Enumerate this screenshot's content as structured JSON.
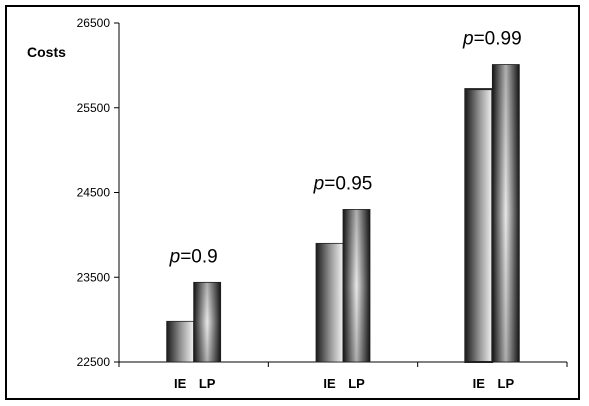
{
  "chart_data": {
    "type": "bar",
    "ylabel": "Costs",
    "ylim": [
      22500,
      26500
    ],
    "yticks": [
      22500,
      23500,
      24500,
      25500,
      26500
    ],
    "groups": [
      {
        "annotation_var": "p",
        "annotation_value": "=0.9",
        "bars": [
          {
            "label": "IE",
            "value": 22980
          },
          {
            "label": "LP",
            "value": 23440
          }
        ]
      },
      {
        "annotation_var": "p",
        "annotation_value": "=0.95",
        "bars": [
          {
            "label": "IE",
            "value": 23900
          },
          {
            "label": "LP",
            "value": 24300
          }
        ]
      },
      {
        "annotation_var": "p",
        "annotation_value": "=0.99",
        "bars": [
          {
            "label": "IE",
            "value": 25720
          },
          {
            "label": "LP",
            "value": 26010
          }
        ]
      }
    ],
    "grid": false,
    "legend": "none"
  }
}
